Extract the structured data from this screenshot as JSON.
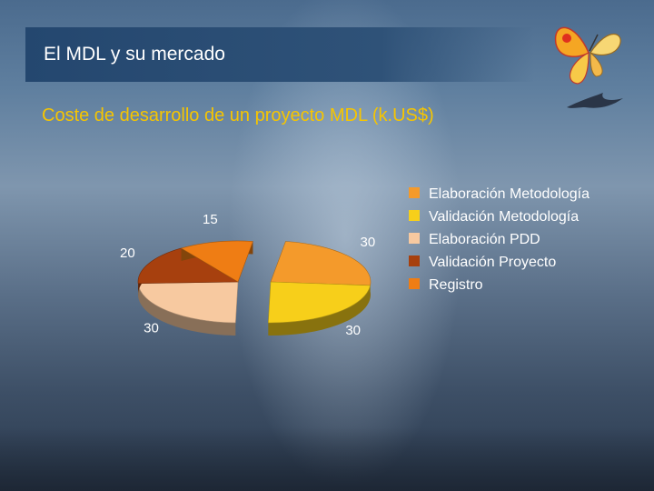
{
  "header": {
    "title": "El MDL y su mercado"
  },
  "subtitle": "Coste de desarrollo de un proyecto MDL (k.US$)",
  "chart_data": {
    "type": "pie",
    "title": "Coste de desarrollo de un proyecto MDL (k.US$)",
    "series": [
      {
        "name": "Elaboración Metodología",
        "value": 30,
        "color": "#f49a2b"
      },
      {
        "name": "Validación Metodología",
        "value": 30,
        "color": "#f7cf1a"
      },
      {
        "name": "Elaboración PDD",
        "value": 30,
        "color": "#f7c9a0"
      },
      {
        "name": "Validación Proyecto",
        "value": 20,
        "color": "#a7400e"
      },
      {
        "name": "Registro",
        "value": 15,
        "color": "#ef7d14"
      }
    ],
    "legend": "right"
  },
  "decor": {
    "butterfly": "butterfly-icon",
    "bird": "bird-icon"
  }
}
